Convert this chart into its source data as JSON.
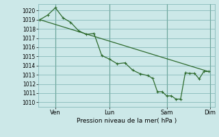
{
  "bg_color": "#cce8e8",
  "grid_color": "#7ab0b0",
  "line_color": "#2d6a2d",
  "marker_color": "#2d6a2d",
  "xlabel": "Pression niveau de la mer( hPa )",
  "ylim": [
    1009.5,
    1020.7
  ],
  "yticks": [
    1010,
    1011,
    1012,
    1013,
    1014,
    1015,
    1016,
    1017,
    1018,
    1019,
    1020
  ],
  "x_tick_labels": [
    "Ven",
    "Lun",
    "Sam",
    "Dim"
  ],
  "line1_x": [
    0,
    0.5,
    1.0,
    1.5,
    2.0,
    2.5,
    3.0,
    3.5,
    4.0,
    4.5,
    5.0,
    5.5,
    6.0,
    6.5,
    7.0,
    7.3,
    7.6,
    7.9,
    8.2,
    8.5,
    8.8,
    9.1,
    9.4,
    9.7,
    10.0,
    10.3,
    10.6,
    10.9
  ],
  "line1_y": [
    1019.0,
    1019.5,
    1020.3,
    1019.2,
    1018.7,
    1017.8,
    1017.4,
    1017.5,
    1015.1,
    1014.7,
    1014.2,
    1014.3,
    1013.5,
    1013.1,
    1012.9,
    1012.6,
    1011.15,
    1011.15,
    1010.7,
    1010.7,
    1010.35,
    1010.35,
    1013.2,
    1013.15,
    1013.15,
    1012.55,
    1013.35,
    1013.35
  ],
  "line2_x": [
    0,
    10.9
  ],
  "line2_y": [
    1019.0,
    1013.35
  ],
  "vline_positions": [
    1.0,
    4.5,
    8.2,
    11.0
  ],
  "xlim": [
    -0.1,
    11.3
  ]
}
